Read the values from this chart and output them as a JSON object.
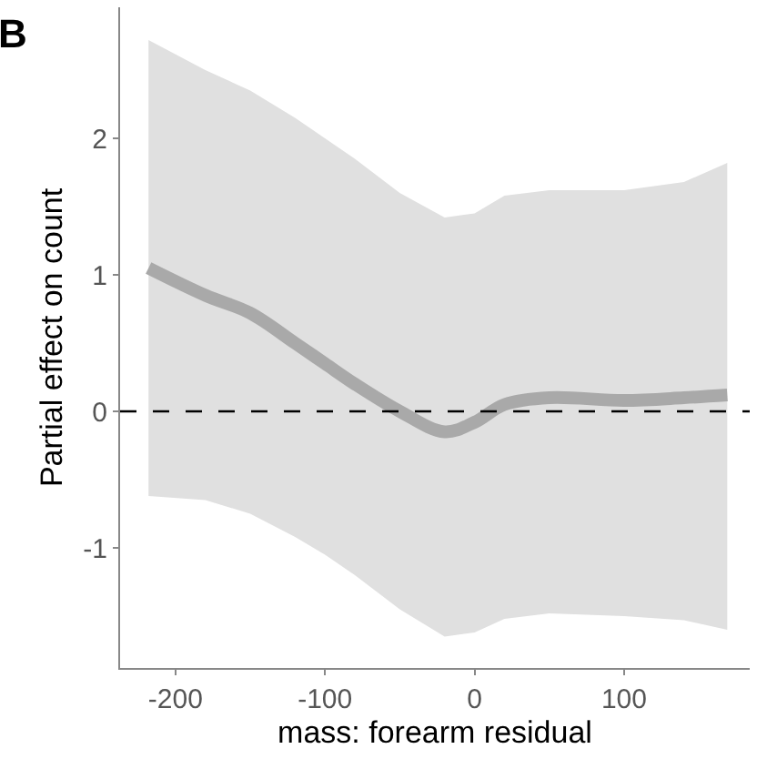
{
  "chart_data": {
    "type": "line",
    "annotations": [
      "B"
    ],
    "xlabel": "mass: forearm residual",
    "ylabel": "Partial effect on count",
    "x": [
      -218,
      -180,
      -150,
      -120,
      -100,
      -80,
      -50,
      -20,
      0,
      20,
      50,
      100,
      140,
      169
    ],
    "series": [
      {
        "color": "#a9a9a9",
        "values": [
          1.05,
          0.85,
          0.72,
          0.5,
          0.35,
          0.2,
          0.0,
          -0.15,
          -0.08,
          0.05,
          0.1,
          0.08,
          0.1,
          0.12
        ],
        "lower": [
          -0.62,
          -0.65,
          -0.75,
          -0.92,
          -1.05,
          -1.2,
          -1.45,
          -1.65,
          -1.62,
          -1.52,
          -1.48,
          -1.5,
          -1.53,
          -1.6
        ],
        "upper": [
          2.72,
          2.5,
          2.35,
          2.15,
          2.0,
          1.85,
          1.6,
          1.42,
          1.45,
          1.58,
          1.62,
          1.62,
          1.68,
          1.82
        ]
      }
    ],
    "xlim": [
      -237,
      184
    ],
    "ylim": [
      -1.88,
      2.96
    ],
    "xticks": [
      -200,
      -100,
      0,
      100
    ],
    "yticks": [
      -1,
      0,
      1,
      2
    ],
    "ref_lines": [
      {
        "axis": "y",
        "value": 0,
        "color": "#000000",
        "line_style": "dashed"
      }
    ],
    "marker": "none"
  }
}
